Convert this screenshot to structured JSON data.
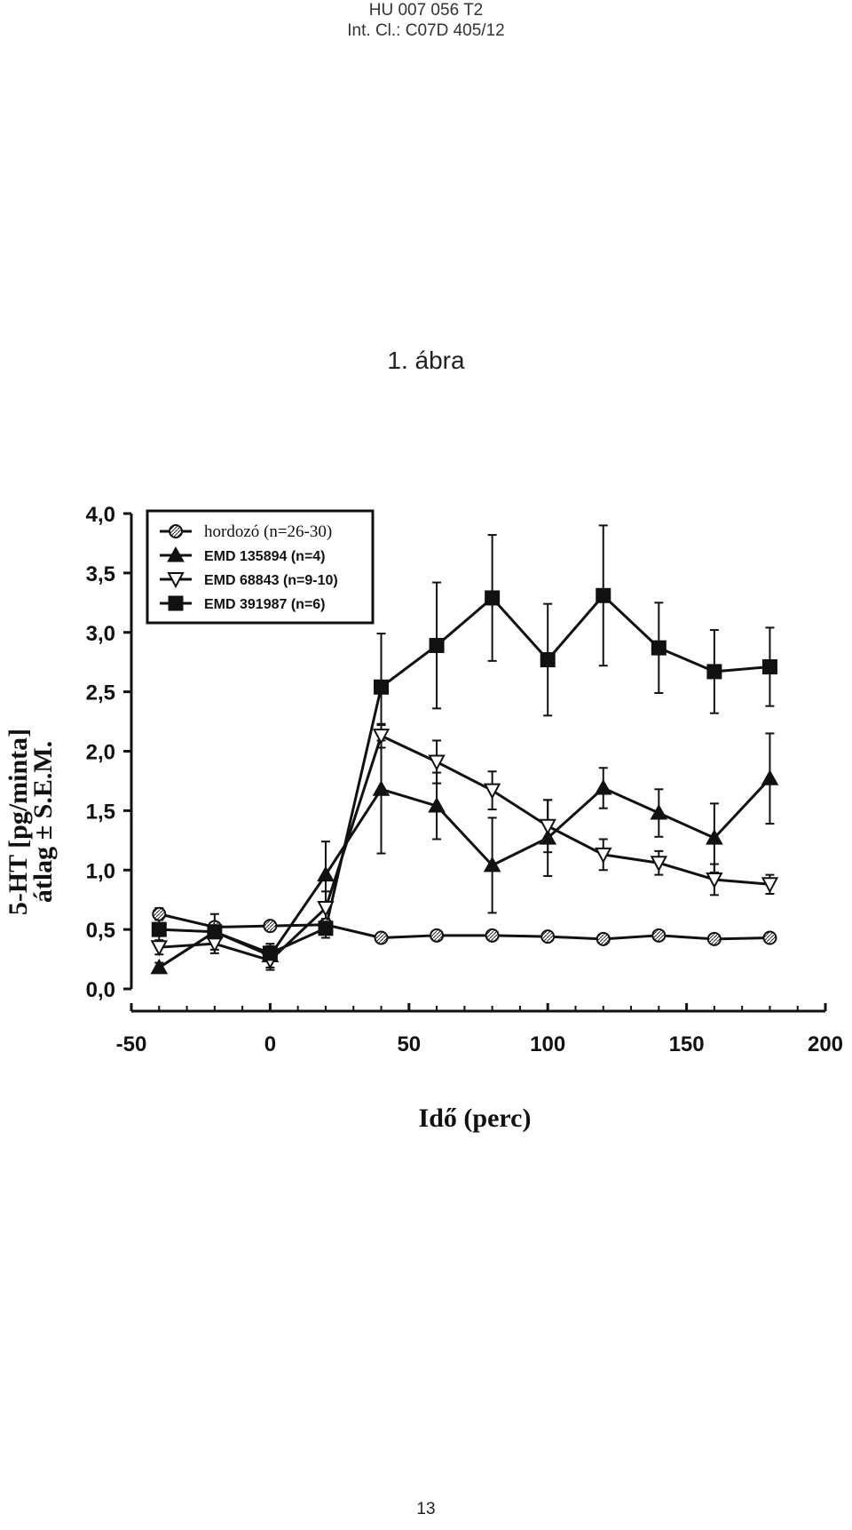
{
  "header": {
    "line1": "HU 007 056 T2",
    "line2": "Int. Cl.: C07D 405/12"
  },
  "figure": {
    "title": "1. ábra"
  },
  "page_number": "13",
  "chart_data": {
    "type": "line",
    "xlabel": "Idő (perc)",
    "ylabel_line1": "5-HT [pg/minta]",
    "ylabel_line2": "átlag ± S.E.M.",
    "xlim": [
      -50,
      200
    ],
    "ylim": [
      0,
      4
    ],
    "xticks": [
      -50,
      0,
      50,
      100,
      150,
      200
    ],
    "xtick_labels": [
      "-50",
      "0",
      "50",
      "100",
      "150",
      "200"
    ],
    "yticks": [
      0,
      0.5,
      1,
      1.5,
      2,
      2.5,
      3,
      3.5,
      4
    ],
    "ytick_labels": [
      "0,0",
      "0,5",
      "1,0",
      "1,5",
      "2,0",
      "2,5",
      "3,0",
      "3,5",
      "4,0"
    ],
    "legend_position": "top-left",
    "x": [
      -40,
      -20,
      0,
      20,
      40,
      60,
      80,
      100,
      120,
      140,
      160,
      180
    ],
    "series": [
      {
        "name": "hordozó (n=26-30)",
        "marker": "circle-hatched",
        "color": "#111111",
        "values": [
          0.63,
          0.52,
          0.53,
          0.54,
          0.43,
          0.45,
          0.45,
          0.44,
          0.42,
          0.45,
          0.42,
          0.43
        ],
        "errors": [
          0.05,
          0.03,
          0.03,
          0.03,
          0.02,
          0.03,
          0.03,
          0.03,
          0.02,
          0.03,
          0.02,
          0.02
        ]
      },
      {
        "name": "EMD 135894 (n=4)",
        "marker": "triangle-up-filled",
        "color": "#111111",
        "values": [
          0.18,
          0.48,
          0.28,
          0.96,
          1.68,
          1.54,
          1.04,
          1.27,
          1.69,
          1.48,
          1.27,
          1.77
        ],
        "errors": [
          0.04,
          0.15,
          0.1,
          0.28,
          0.54,
          0.28,
          0.4,
          0.32,
          0.17,
          0.2,
          0.29,
          0.38
        ]
      },
      {
        "name": "EMD 68843 (n=9-10)",
        "marker": "triangle-down-open",
        "color": "#111111",
        "values": [
          0.35,
          0.38,
          0.24,
          0.68,
          2.13,
          1.91,
          1.67,
          1.37,
          1.13,
          1.06,
          0.92,
          0.88
        ],
        "errors": [
          0.06,
          0.08,
          0.08,
          0.14,
          0.1,
          0.18,
          0.16,
          0.22,
          0.13,
          0.1,
          0.13,
          0.08
        ]
      },
      {
        "name": "EMD 391987 (n=6)",
        "marker": "square-filled",
        "color": "#111111",
        "values": [
          0.5,
          0.48,
          0.3,
          0.51,
          2.54,
          2.89,
          3.29,
          2.77,
          3.31,
          2.87,
          2.67,
          2.71
        ],
        "errors": [
          0.1,
          0.08,
          0.06,
          0.08,
          0.45,
          0.53,
          0.53,
          0.47,
          0.59,
          0.38,
          0.35,
          0.33
        ]
      }
    ]
  }
}
